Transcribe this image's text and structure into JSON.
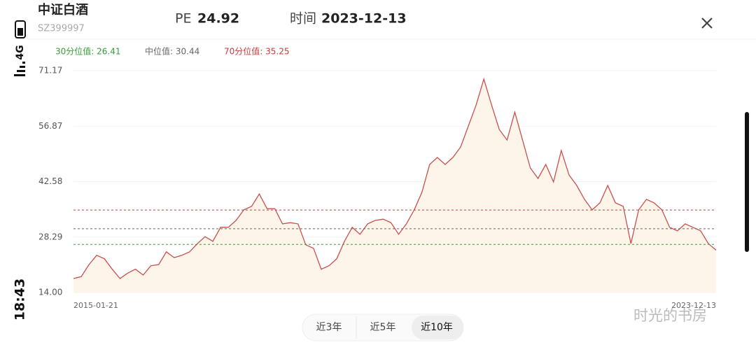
{
  "status": {
    "time": "18:43",
    "network": "4G"
  },
  "header": {
    "title": "中证白酒",
    "code": "SZ399997",
    "pe_label": "PE",
    "pe_value": "24.92",
    "date_label": "时间",
    "date_value": "2023-12-13"
  },
  "tabs": [
    "近3年",
    "近5年",
    "近10年"
  ],
  "selected_tab": 2,
  "watermark": "时光的书房",
  "chart_data": {
    "type": "area",
    "x_start": "2015-01-21",
    "x_end": "2023-12-13",
    "color": "#c9504d",
    "fill": "#fdf5ea",
    "ylim": [
      14,
      71.17
    ],
    "yticks": [
      {
        "value": 14,
        "label": "14.00"
      },
      28.29,
      42.58,
      56.87,
      71.17
    ],
    "grid": true,
    "reference_lines": [
      {
        "label": "30分位值: 26.41",
        "value": 26.41,
        "color": "#3a9a3a"
      },
      {
        "label": "中位值: 30.44",
        "value": 30.44,
        "color": "#666666"
      },
      {
        "label": "70分位值: 35.25",
        "value": 35.25,
        "color": "#c83c3c"
      }
    ],
    "values": [
      17.6,
      18.1,
      21.2,
      23.6,
      22.7,
      20,
      17.6,
      19,
      20,
      18.5,
      20.9,
      21.2,
      24.5,
      23,
      23.6,
      24.5,
      26.6,
      28.4,
      27.2,
      30.8,
      30.8,
      32.6,
      35.3,
      36.2,
      39.4,
      35.6,
      35.6,
      31.7,
      32,
      31.7,
      26.3,
      25.4,
      20,
      20.9,
      22.7,
      27.2,
      30.8,
      29,
      31.7,
      32.6,
      32.9,
      32,
      29,
      31.7,
      35.3,
      39.8,
      47,
      48.8,
      47,
      48.8,
      51.5,
      56.9,
      62.3,
      69,
      62.3,
      56,
      53.3,
      60.5,
      53.3,
      46.1,
      43.4,
      47,
      42.5,
      50.6,
      44.3,
      41.6,
      38,
      35.3,
      37.1,
      41.6,
      37.1,
      36.2,
      26.6,
      35.3,
      38,
      37.1,
      35.3,
      30.8,
      29.9,
      31.7,
      30.8,
      29.9,
      26.6,
      24.92
    ]
  }
}
